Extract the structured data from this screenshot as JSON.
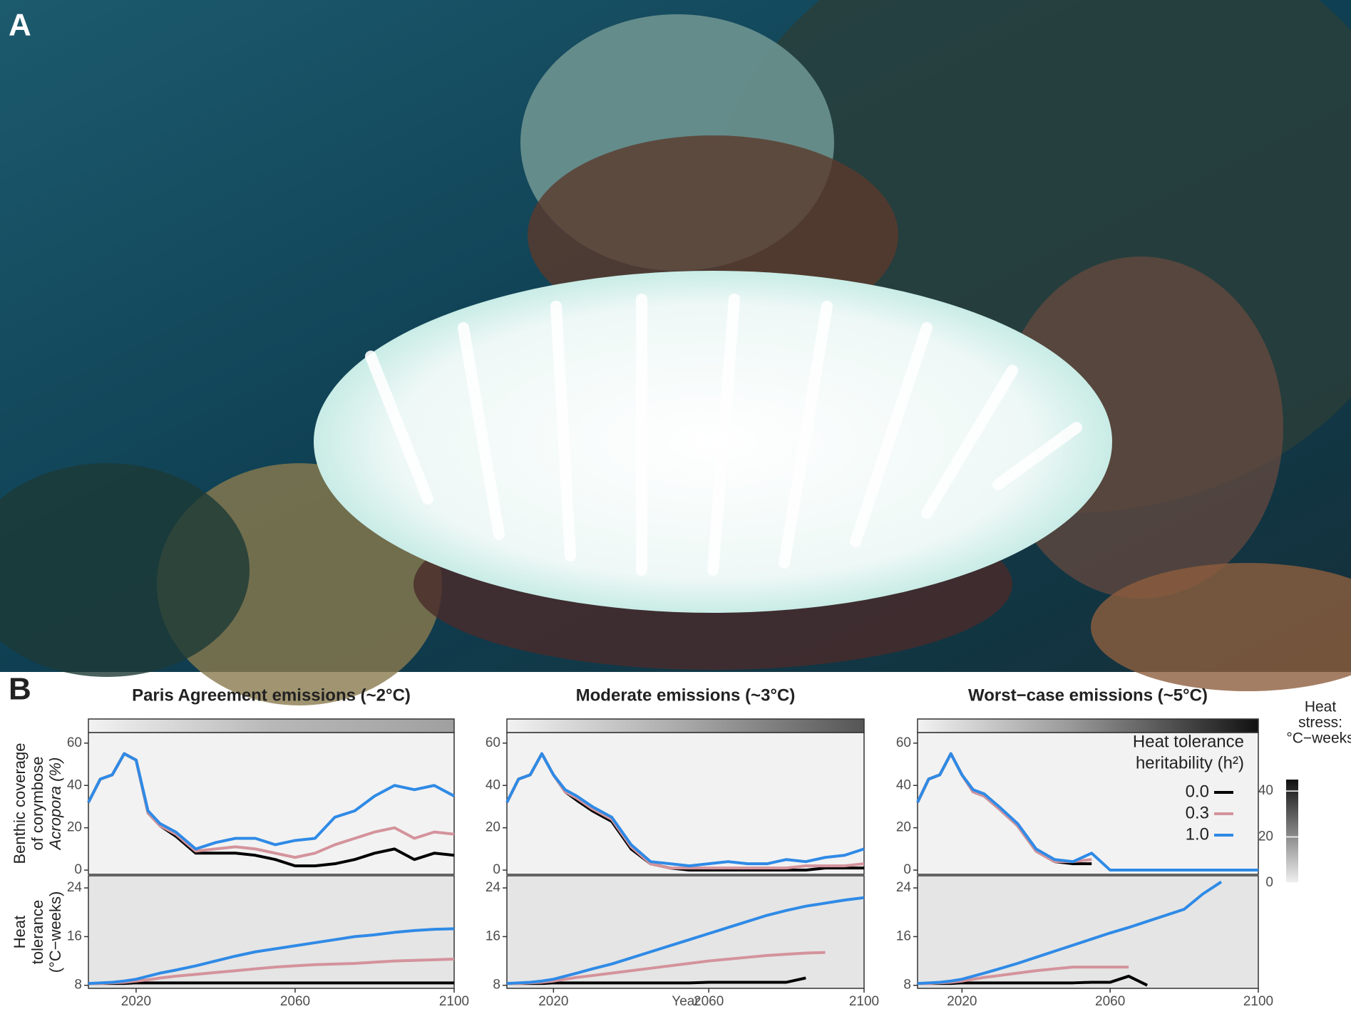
{
  "panels": [
    "A",
    "B"
  ],
  "colorbar": {
    "title": [
      "Heat",
      "stress:",
      "°C−weeks"
    ],
    "lim": [
      0,
      45
    ],
    "ticks": [
      0,
      20,
      40
    ]
  },
  "chart_data": [
    {
      "type": "line",
      "title": "Paris Agreement emissions (~2°C)",
      "ylabel": [
        "Benthic coverage",
        "of corymbose",
        "Acropora (%)"
      ],
      "x": [
        2008,
        2011,
        2014,
        2017,
        2020,
        2023,
        2026,
        2030,
        2035,
        2040,
        2045,
        2050,
        2055,
        2060,
        2065,
        2070,
        2075,
        2080,
        2085,
        2090,
        2095,
        2100
      ],
      "xlim": [
        2008,
        2100
      ],
      "ylim": [
        -2,
        65
      ],
      "yticks": [
        0,
        20,
        40,
        60
      ],
      "series": [
        {
          "color": "#000000",
          "values": [
            32,
            43,
            45,
            55,
            52,
            27,
            21,
            16,
            8,
            8,
            8,
            7,
            5,
            2,
            2,
            3,
            5,
            8,
            10,
            5,
            8,
            7
          ]
        },
        {
          "color": "#d4939b",
          "values": [
            32,
            43,
            45,
            55,
            52,
            27,
            21,
            17,
            9,
            10,
            11,
            10,
            8,
            6,
            8,
            12,
            15,
            18,
            20,
            15,
            18,
            17
          ]
        },
        {
          "color": "#2f8ae6",
          "values": [
            32,
            43,
            45,
            55,
            52,
            28,
            22,
            18,
            10,
            13,
            15,
            15,
            12,
            14,
            15,
            25,
            28,
            35,
            40,
            38,
            40,
            35
          ]
        }
      ]
    },
    {
      "type": "line",
      "title": "Moderate emissions (~3°C)",
      "x": [
        2008,
        2011,
        2014,
        2017,
        2020,
        2023,
        2026,
        2030,
        2035,
        2040,
        2045,
        2050,
        2055,
        2060,
        2065,
        2070,
        2075,
        2080,
        2085,
        2090,
        2095,
        2100
      ],
      "xlim": [
        2008,
        2100
      ],
      "ylim": [
        -2,
        65
      ],
      "yticks": [
        0,
        20,
        40,
        60
      ],
      "series": [
        {
          "color": "#000000",
          "values": [
            32,
            43,
            45,
            55,
            45,
            37,
            33,
            28,
            23,
            10,
            3,
            1,
            0,
            0,
            0,
            0,
            0,
            0,
            0,
            1,
            1,
            1
          ]
        },
        {
          "color": "#d4939b",
          "values": [
            32,
            43,
            45,
            55,
            45,
            37,
            34,
            29,
            24,
            11,
            3,
            1,
            1,
            1,
            1,
            1,
            1,
            1,
            2,
            2,
            2,
            3
          ]
        },
        {
          "color": "#2f8ae6",
          "values": [
            32,
            43,
            45,
            55,
            45,
            38,
            35,
            30,
            25,
            12,
            4,
            3,
            2,
            3,
            4,
            3,
            3,
            5,
            4,
            6,
            7,
            10
          ]
        }
      ]
    },
    {
      "type": "line",
      "title": "Worst−case emissions (~5°C)",
      "legend": "top right",
      "legend_title": [
        "Heat tolerance",
        "heritability (h²)"
      ],
      "x": [
        2008,
        2011,
        2014,
        2017,
        2020,
        2023,
        2026,
        2030,
        2035,
        2040,
        2045,
        2050,
        2055,
        2060,
        2065,
        2070,
        2075,
        2080,
        2085,
        2090,
        2095,
        2100
      ],
      "xlim": [
        2008,
        2100
      ],
      "ylim": [
        -2,
        65
      ],
      "yticks": [
        0,
        20,
        40,
        60
      ],
      "series": [
        {
          "name": "0.0",
          "color": "#000000",
          "values": [
            32,
            43,
            45,
            55,
            45,
            37,
            35,
            29,
            21,
            9,
            4,
            3,
            3,
            null,
            null,
            null,
            null,
            null,
            null,
            null,
            null,
            null
          ]
        },
        {
          "name": "0.3",
          "color": "#d4939b",
          "values": [
            32,
            43,
            45,
            55,
            45,
            37,
            35,
            29,
            21,
            9,
            4,
            4,
            5,
            null,
            null,
            null,
            null,
            null,
            null,
            null,
            null,
            null
          ]
        },
        {
          "name": "1.0",
          "color": "#2f8ae6",
          "values": [
            32,
            43,
            45,
            55,
            45,
            38,
            36,
            30,
            22,
            10,
            5,
            4,
            8,
            0,
            0,
            0,
            0,
            0,
            0,
            0,
            0,
            0
          ]
        }
      ]
    },
    {
      "type": "line",
      "ylabel": [
        "Heat",
        "tolerance",
        "(°C−weeks)"
      ],
      "x": [
        2008,
        2011,
        2014,
        2017,
        2020,
        2023,
        2026,
        2030,
        2035,
        2040,
        2045,
        2050,
        2055,
        2060,
        2065,
        2070,
        2075,
        2080,
        2085,
        2090,
        2095,
        2100
      ],
      "xlim": [
        2008,
        2100
      ],
      "xticks": [
        2020,
        2060,
        2100
      ],
      "ylim": [
        7.5,
        26
      ],
      "yticks": [
        8,
        16,
        24
      ],
      "series": [
        {
          "color": "#000000",
          "values": [
            8.3,
            8.3,
            8.3,
            8.3,
            8.4,
            8.4,
            8.4,
            8.4,
            8.4,
            8.4,
            8.4,
            8.4,
            8.4,
            8.4,
            8.4,
            8.4,
            8.4,
            8.4,
            8.4,
            8.4,
            8.4,
            8.4
          ]
        },
        {
          "color": "#d4939b",
          "values": [
            8.3,
            8.3,
            8.4,
            8.5,
            8.7,
            8.9,
            9.2,
            9.5,
            9.8,
            10.1,
            10.4,
            10.7,
            11,
            11.2,
            11.4,
            11.5,
            11.6,
            11.8,
            12,
            12.1,
            12.2,
            12.3
          ]
        },
        {
          "color": "#2f8ae6",
          "values": [
            8.3,
            8.4,
            8.5,
            8.7,
            9,
            9.5,
            10,
            10.5,
            11.2,
            12,
            12.8,
            13.5,
            14,
            14.5,
            15,
            15.5,
            16,
            16.3,
            16.7,
            17,
            17.2,
            17.3
          ]
        }
      ]
    },
    {
      "type": "line",
      "xlabel": "Year",
      "x": [
        2008,
        2011,
        2014,
        2017,
        2020,
        2023,
        2026,
        2030,
        2035,
        2040,
        2045,
        2050,
        2055,
        2060,
        2065,
        2070,
        2075,
        2080,
        2085,
        2090,
        2095,
        2100
      ],
      "xlim": [
        2008,
        2100
      ],
      "xticks": [
        2020,
        2060,
        2100
      ],
      "ylim": [
        7.5,
        26
      ],
      "yticks": [
        8,
        16,
        24
      ],
      "series": [
        {
          "color": "#000000",
          "values": [
            8.3,
            8.3,
            8.3,
            8.3,
            8.4,
            8.4,
            8.4,
            8.4,
            8.4,
            8.4,
            8.4,
            8.4,
            8.4,
            8.5,
            8.5,
            8.5,
            8.5,
            8.5,
            9.2,
            null,
            null,
            null
          ]
        },
        {
          "color": "#d4939b",
          "values": [
            8.3,
            8.3,
            8.4,
            8.5,
            8.7,
            9,
            9.3,
            9.6,
            10,
            10.4,
            10.8,
            11.2,
            11.6,
            12,
            12.3,
            12.6,
            12.9,
            13.1,
            13.3,
            13.4,
            null,
            null
          ]
        },
        {
          "color": "#2f8ae6",
          "values": [
            8.3,
            8.4,
            8.5,
            8.7,
            9,
            9.5,
            10,
            10.7,
            11.5,
            12.5,
            13.5,
            14.5,
            15.5,
            16.5,
            17.5,
            18.5,
            19.5,
            20.3,
            21,
            21.5,
            22,
            22.4
          ]
        }
      ]
    },
    {
      "type": "line",
      "x": [
        2008,
        2011,
        2014,
        2017,
        2020,
        2023,
        2026,
        2030,
        2035,
        2040,
        2045,
        2050,
        2055,
        2060,
        2065,
        2070,
        2075,
        2080,
        2085,
        2090,
        2095,
        2100
      ],
      "xlim": [
        2008,
        2100
      ],
      "xticks": [
        2020,
        2060,
        2100
      ],
      "ylim": [
        7.5,
        26
      ],
      "yticks": [
        8,
        16,
        24
      ],
      "series": [
        {
          "color": "#000000",
          "values": [
            8.3,
            8.3,
            8.3,
            8.3,
            8.4,
            8.4,
            8.4,
            8.4,
            8.4,
            8.4,
            8.4,
            8.4,
            8.5,
            8.5,
            9.5,
            8,
            null,
            null,
            null,
            null,
            null,
            null
          ]
        },
        {
          "color": "#d4939b",
          "values": [
            8.3,
            8.3,
            8.4,
            8.5,
            8.7,
            9,
            9.3,
            9.6,
            10,
            10.4,
            10.7,
            11,
            11,
            11,
            11,
            null,
            null,
            null,
            null,
            null,
            null,
            null
          ]
        },
        {
          "color": "#2f8ae6",
          "values": [
            8.3,
            8.4,
            8.5,
            8.7,
            9,
            9.5,
            10,
            10.7,
            11.6,
            12.6,
            13.6,
            14.6,
            15.6,
            16.6,
            17.5,
            18.5,
            19.5,
            20.5,
            23,
            25,
            null,
            null
          ]
        }
      ]
    }
  ]
}
